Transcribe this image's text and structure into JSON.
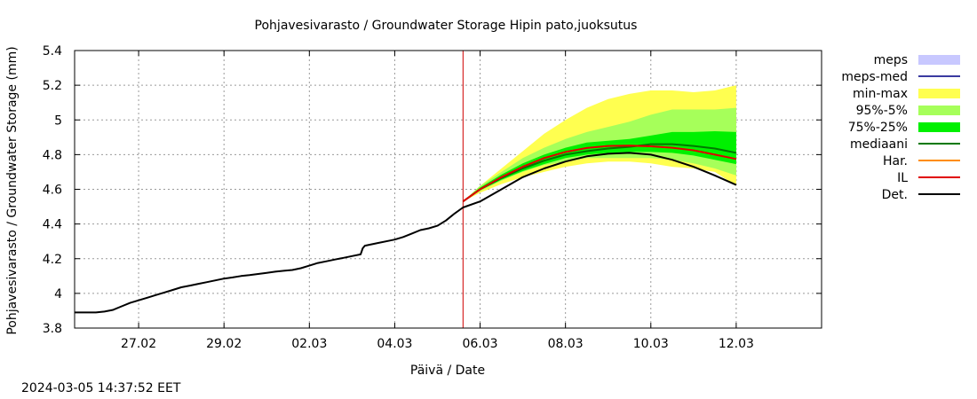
{
  "chart_data": {
    "type": "area",
    "title": "Pohjavesivarasto / Groundwater Storage   Hipin pato,juoksutus",
    "xlabel": "Päivä / Date",
    "ylabel": "Pohjavesivarasto / Groundwater Storage (mm)",
    "ylim": [
      3.8,
      5.4
    ],
    "xlim": [
      -1.5,
      16.0
    ],
    "x_unit": "days since 27.02",
    "x_ticks": [
      {
        "pos": 0,
        "label": "27.02"
      },
      {
        "pos": 2,
        "label": "29.02"
      },
      {
        "pos": 4,
        "label": "02.03"
      },
      {
        "pos": 6,
        "label": "04.03"
      },
      {
        "pos": 8,
        "label": "06.03"
      },
      {
        "pos": 10,
        "label": "08.03"
      },
      {
        "pos": 12,
        "label": "10.03"
      },
      {
        "pos": 14,
        "label": "12.03"
      }
    ],
    "y_ticks": [
      3.8,
      4,
      4.2,
      4.4,
      4.6,
      4.8,
      5,
      5.2,
      5.4
    ],
    "grid": true,
    "current_time_marker": 7.6,
    "legend": [
      {
        "key": "meps",
        "label": "meps",
        "type": "band",
        "color": "#c8c8ff"
      },
      {
        "key": "meps_med",
        "label": "meps-med",
        "type": "line",
        "color": "#3a3aa0"
      },
      {
        "key": "minmax",
        "label": "min-max",
        "type": "band",
        "color": "#ffff50"
      },
      {
        "key": "p95_5",
        "label": "95%-5%",
        "type": "band",
        "color": "#a6ff5a"
      },
      {
        "key": "p75_25",
        "label": "75%-25%",
        "type": "band",
        "color": "#00f000"
      },
      {
        "key": "median",
        "label": "mediaani",
        "type": "line",
        "color": "#007800"
      },
      {
        "key": "har",
        "label": "Har.",
        "type": "line",
        "color": "#ff8c00"
      },
      {
        "key": "il",
        "label": "IL",
        "type": "line",
        "color": "#e00000"
      },
      {
        "key": "det",
        "label": "Det.",
        "type": "line",
        "color": "#000000"
      }
    ],
    "series": [
      {
        "name": "Det.",
        "color": "#000000",
        "x": [
          -1.5,
          -1.0,
          -0.8,
          -0.6,
          -0.4,
          -0.2,
          0.0,
          0.2,
          0.4,
          0.6,
          0.8,
          1.0,
          1.2,
          1.4,
          1.6,
          1.8,
          2.0,
          2.2,
          2.4,
          2.6,
          2.8,
          3.0,
          3.2,
          3.4,
          3.6,
          3.8,
          4.0,
          4.2,
          4.4,
          4.6,
          4.8,
          5.0,
          5.2,
          5.25,
          5.3,
          5.6,
          5.9,
          6.0,
          6.2,
          6.4,
          6.6,
          6.8,
          7.0,
          7.2,
          7.4,
          7.6,
          8.0,
          8.5,
          9.0,
          9.5,
          10.0,
          10.5,
          11.0,
          11.5,
          12.0,
          12.5,
          13.0,
          13.5,
          14.0
        ],
        "y": [
          3.89,
          3.89,
          3.895,
          3.905,
          3.925,
          3.945,
          3.96,
          3.975,
          3.99,
          4.005,
          4.02,
          4.035,
          4.045,
          4.055,
          4.065,
          4.075,
          4.085,
          4.092,
          4.1,
          4.105,
          4.112,
          4.118,
          4.125,
          4.13,
          4.135,
          4.145,
          4.16,
          4.175,
          4.185,
          4.195,
          4.205,
          4.215,
          4.225,
          4.26,
          4.275,
          4.29,
          4.305,
          4.31,
          4.325,
          4.345,
          4.365,
          4.375,
          4.39,
          4.42,
          4.46,
          4.495,
          4.53,
          4.6,
          4.67,
          4.72,
          4.76,
          4.79,
          4.805,
          4.81,
          4.8,
          4.77,
          4.73,
          4.68,
          4.625
        ]
      },
      {
        "name": "IL",
        "color": "#e00000",
        "x": [
          7.6,
          8.0,
          8.5,
          9.0,
          9.5,
          10.0,
          10.5,
          11.0,
          11.5,
          12.0,
          12.5,
          13.0,
          13.5,
          14.0
        ],
        "y": [
          4.53,
          4.6,
          4.67,
          4.73,
          4.78,
          4.815,
          4.838,
          4.85,
          4.852,
          4.848,
          4.84,
          4.825,
          4.8,
          4.775
        ]
      },
      {
        "name": "mediaani",
        "color": "#007800",
        "x": [
          7.6,
          8.0,
          8.5,
          9.0,
          9.5,
          10.0,
          10.5,
          11.0,
          11.5,
          12.0,
          12.5,
          13.0,
          13.5,
          14.0
        ],
        "y": [
          4.53,
          4.6,
          4.665,
          4.72,
          4.765,
          4.8,
          4.82,
          4.835,
          4.845,
          4.86,
          4.86,
          4.85,
          4.835,
          4.81
        ]
      }
    ],
    "bands": [
      {
        "name": "min-max",
        "color": "#ffff50",
        "x": [
          7.6,
          8.0,
          8.5,
          9.0,
          9.5,
          10.0,
          10.5,
          11.0,
          11.5,
          12.0,
          12.5,
          13.0,
          13.5,
          14.0
        ],
        "upper": [
          4.53,
          4.62,
          4.72,
          4.82,
          4.92,
          5.0,
          5.07,
          5.12,
          5.15,
          5.17,
          5.17,
          5.16,
          5.17,
          5.2
        ],
        "lower": [
          4.53,
          4.58,
          4.63,
          4.67,
          4.7,
          4.73,
          4.75,
          4.76,
          4.76,
          4.75,
          4.73,
          4.72,
          4.7,
          4.62
        ]
      },
      {
        "name": "95%-5%",
        "color": "#a6ff5a",
        "x": [
          7.6,
          8.0,
          8.5,
          9.0,
          9.5,
          10.0,
          10.5,
          11.0,
          11.5,
          12.0,
          12.5,
          13.0,
          13.5,
          14.0
        ],
        "upper": [
          4.53,
          4.62,
          4.7,
          4.78,
          4.84,
          4.89,
          4.93,
          4.96,
          4.99,
          5.03,
          5.06,
          5.06,
          5.06,
          5.07
        ],
        "lower": [
          4.53,
          4.59,
          4.65,
          4.7,
          4.74,
          4.76,
          4.78,
          4.78,
          4.78,
          4.78,
          4.77,
          4.75,
          4.72,
          4.68
        ]
      },
      {
        "name": "75%-25%",
        "color": "#00f000",
        "x": [
          7.6,
          8.0,
          8.5,
          9.0,
          9.5,
          10.0,
          10.5,
          11.0,
          11.5,
          12.0,
          12.5,
          13.0,
          13.5,
          14.0
        ],
        "upper": [
          4.53,
          4.61,
          4.685,
          4.75,
          4.8,
          4.84,
          4.87,
          4.88,
          4.89,
          4.91,
          4.93,
          4.93,
          4.935,
          4.93
        ],
        "lower": [
          4.53,
          4.595,
          4.655,
          4.705,
          4.745,
          4.78,
          4.8,
          4.81,
          4.815,
          4.815,
          4.81,
          4.795,
          4.77,
          4.745
        ]
      }
    ]
  },
  "footer": {
    "timestamp": "2024-03-05 14:37:52 EET"
  }
}
